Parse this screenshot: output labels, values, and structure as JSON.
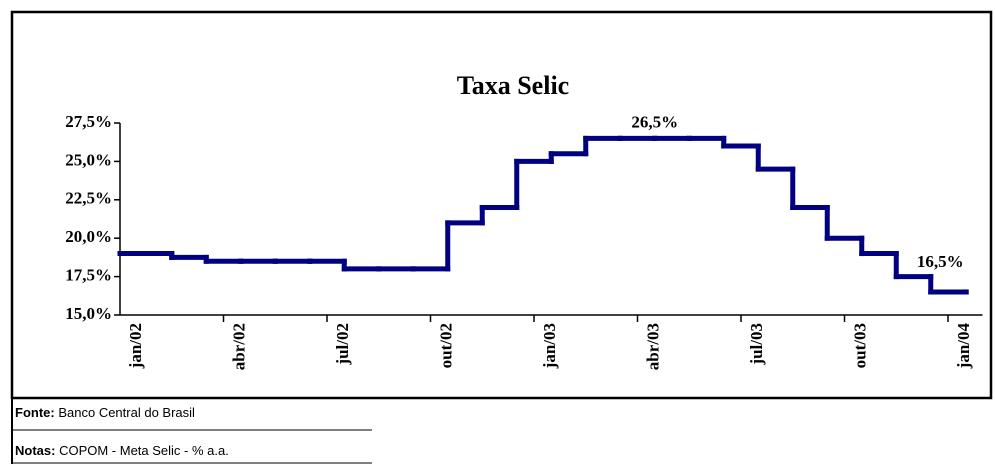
{
  "chart_data": {
    "type": "line",
    "title": "Taxa Selic",
    "categories": [
      "jan/02",
      null,
      null,
      "abr/02",
      null,
      null,
      "jul/02",
      null,
      null,
      "out/02",
      null,
      null,
      "jan/03",
      null,
      null,
      "abr/03",
      null,
      null,
      "jul/03",
      null,
      null,
      "out/03",
      null,
      null,
      "jan/04"
    ],
    "values": [
      19,
      18.75,
      18.5,
      18.5,
      18.5,
      18.5,
      18,
      18,
      18,
      21,
      22,
      25,
      25.5,
      26.5,
      26.5,
      26.5,
      26.5,
      26,
      24.5,
      22,
      20,
      19,
      17.5,
      16.5,
      16.5
    ],
    "value_labels": [
      null,
      null,
      null,
      null,
      null,
      null,
      null,
      null,
      null,
      null,
      null,
      null,
      null,
      null,
      null,
      "26,5%",
      null,
      null,
      null,
      null,
      null,
      null,
      null,
      null,
      "16,5%"
    ],
    "color": "#000080",
    "ylim": [
      15,
      27.5
    ],
    "yticks": [
      {
        "value": 15,
        "label": "15,0%"
      },
      {
        "value": 17.5,
        "label": "17,5%"
      },
      {
        "value": 20,
        "label": "20,0%"
      },
      {
        "value": 22.5,
        "label": "22,5%"
      },
      {
        "value": 25,
        "label": "25,0%"
      },
      {
        "value": 27.5,
        "label": "27,5%"
      }
    ],
    "grid": false
  },
  "footer": {
    "source_label": "Fonte:",
    "source": "Banco Central do Brasil",
    "notes_label": "Notas:",
    "notes": "COPOM - Meta Selic - % a.a."
  }
}
